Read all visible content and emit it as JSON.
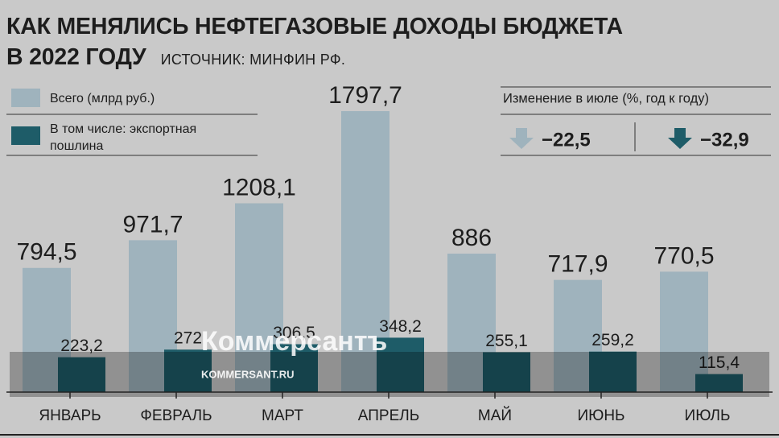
{
  "chart_data": {
    "type": "bar",
    "title": "КАК МЕНЯЛИСЬ НЕФТЕГАЗОВЫЕ ДОХОДЫ БЮДЖЕТА\nВ 2022 ГОДУ",
    "source": "ИСТОЧНИК: МИНФИН РФ.",
    "categories": [
      "ЯНВАРЬ",
      "ФЕВРАЛЬ",
      "МАРТ",
      "АПРЕЛЬ",
      "МАЙ",
      "ИЮНЬ",
      "ИЮЛЬ"
    ],
    "series": [
      {
        "name": "Всего (млрд руб.)",
        "color": "#9fb3bd",
        "values": [
          794.5,
          971.7,
          1208.1,
          1797.7,
          886,
          717.9,
          770.5
        ],
        "value_labels": [
          "794,5",
          "971,7",
          "1208,1",
          "1797,7",
          "886",
          "717,9",
          "770,5"
        ]
      },
      {
        "name": "В том числе: экспортная пошлина",
        "color": "#1e5c68",
        "values": [
          223.2,
          272,
          306.5,
          348.2,
          255.1,
          259.2,
          115.4
        ],
        "value_labels": [
          "223,2",
          "272",
          "306,5",
          "348,2",
          "255,1",
          "259,2",
          "115,4"
        ]
      }
    ],
    "ylim": [
      0,
      1800
    ],
    "change": {
      "title": "Изменение в июле (%, год к году)",
      "items": [
        {
          "value": -22.5,
          "label": "−22,5",
          "color": "#9fb3bd"
        },
        {
          "value": -32.9,
          "label": "−32,9",
          "color": "#1e5c68"
        }
      ]
    },
    "watermark": {
      "logo": "Коммерсантъ",
      "url": "KOMMERSANT.RU"
    }
  }
}
